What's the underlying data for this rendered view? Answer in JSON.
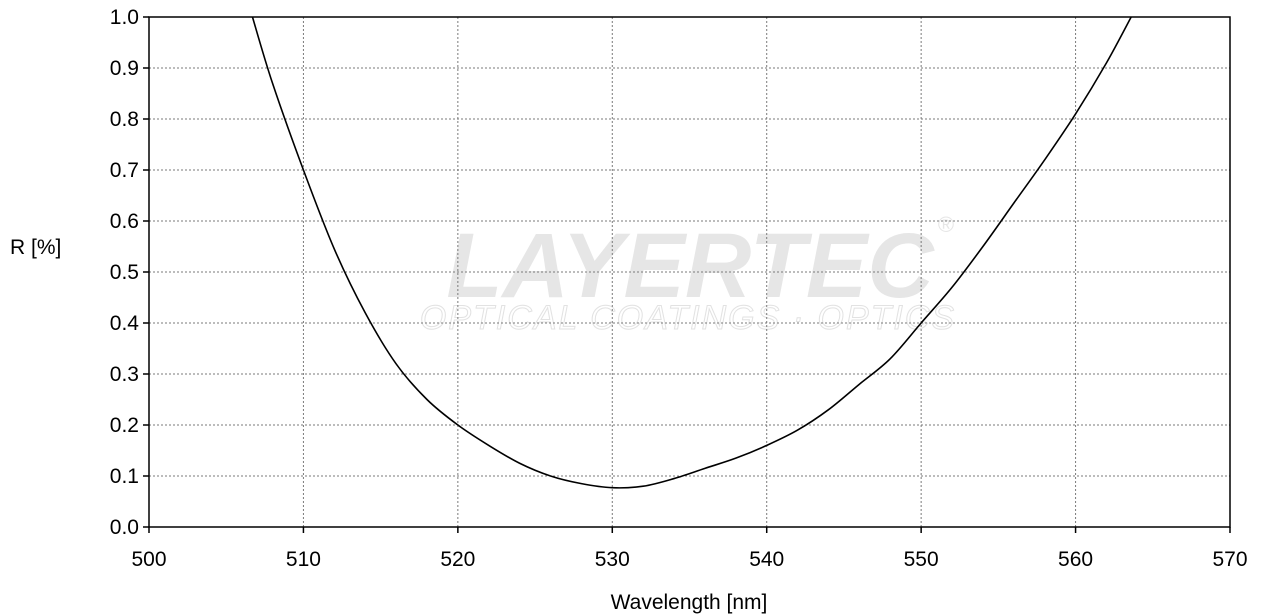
{
  "watermark": {
    "brand": "LAYERTEC",
    "tagline": "OPTICAL COATINGS · OPTICS",
    "registered_mark": "®"
  },
  "chart_data": {
    "type": "line",
    "title": "",
    "xlabel": "Wavelength [nm]",
    "ylabel": "R [%]",
    "xlim": [
      500,
      570
    ],
    "ylim": [
      0.0,
      1.0
    ],
    "xticks": [
      500,
      510,
      520,
      530,
      540,
      550,
      560,
      570
    ],
    "yticks": [
      0.0,
      0.1,
      0.2,
      0.3,
      0.4,
      0.5,
      0.6,
      0.7,
      0.8,
      0.9,
      1.0
    ],
    "xtick_labels": [
      "500",
      "510",
      "520",
      "530",
      "540",
      "550",
      "560",
      "570"
    ],
    "ytick_labels": [
      "0.0",
      "0.1",
      "0.2",
      "0.3",
      "0.4",
      "0.5",
      "0.6",
      "0.7",
      "0.8",
      "0.9",
      "1.0"
    ],
    "grid": true,
    "legend": "none",
    "series": [
      {
        "color": "#000000",
        "x": [
          506.7,
          508,
          510,
          512,
          514,
          516,
          518,
          520,
          522,
          524,
          526,
          528,
          530,
          532,
          534,
          536,
          538,
          540,
          542,
          544,
          546,
          548,
          550,
          552,
          554,
          556,
          558,
          560,
          562,
          563.6
        ],
        "y": [
          1.0,
          0.87,
          0.7,
          0.545,
          0.42,
          0.32,
          0.25,
          0.2,
          0.16,
          0.125,
          0.1,
          0.085,
          0.077,
          0.08,
          0.095,
          0.115,
          0.135,
          0.16,
          0.19,
          0.23,
          0.28,
          0.33,
          0.4,
          0.47,
          0.55,
          0.635,
          0.72,
          0.81,
          0.91,
          1.0
        ]
      }
    ]
  }
}
